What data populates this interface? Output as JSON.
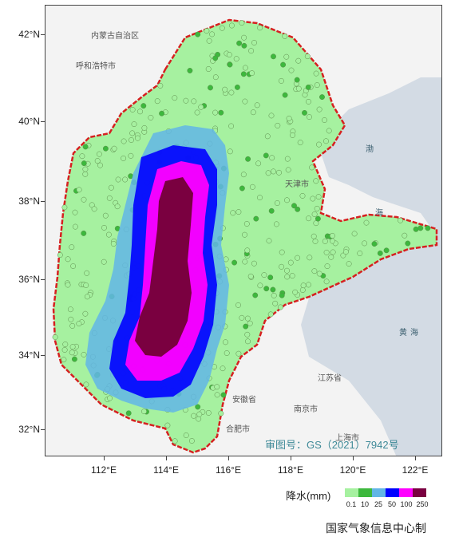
{
  "map": {
    "latitude_labels": [
      "42°N",
      "40°N",
      "38°N",
      "36°N",
      "34°N",
      "32°N"
    ],
    "longitude_labels": [
      "112°E",
      "114°E",
      "116°E",
      "118°E",
      "120°E",
      "122°E"
    ],
    "place_labels": [
      "内蒙古自治区",
      "呼和浩特市",
      "天津市",
      "江苏省",
      "安徽省",
      "南京市",
      "上海市",
      "合肥市"
    ],
    "sea_labels": [
      "渤",
      "海",
      "黄",
      "海"
    ],
    "approval_number": "审图号：GS（2021）7942号",
    "colors": {
      "land_outside": "#f3f3f3",
      "sea": "#d3dbe4",
      "boundary": "#d62020",
      "point_stroke": "#5b8a4a"
    }
  },
  "legend": {
    "title": "降水(mm)",
    "ticks": [
      "0.1",
      "10",
      "25",
      "50",
      "100",
      "250"
    ],
    "colors": [
      "#a6f1a0",
      "#3db83d",
      "#62b6e6",
      "#0000ff",
      "#ff00ff",
      "#7a0040"
    ]
  },
  "credit": "国家气象信息中心制"
}
